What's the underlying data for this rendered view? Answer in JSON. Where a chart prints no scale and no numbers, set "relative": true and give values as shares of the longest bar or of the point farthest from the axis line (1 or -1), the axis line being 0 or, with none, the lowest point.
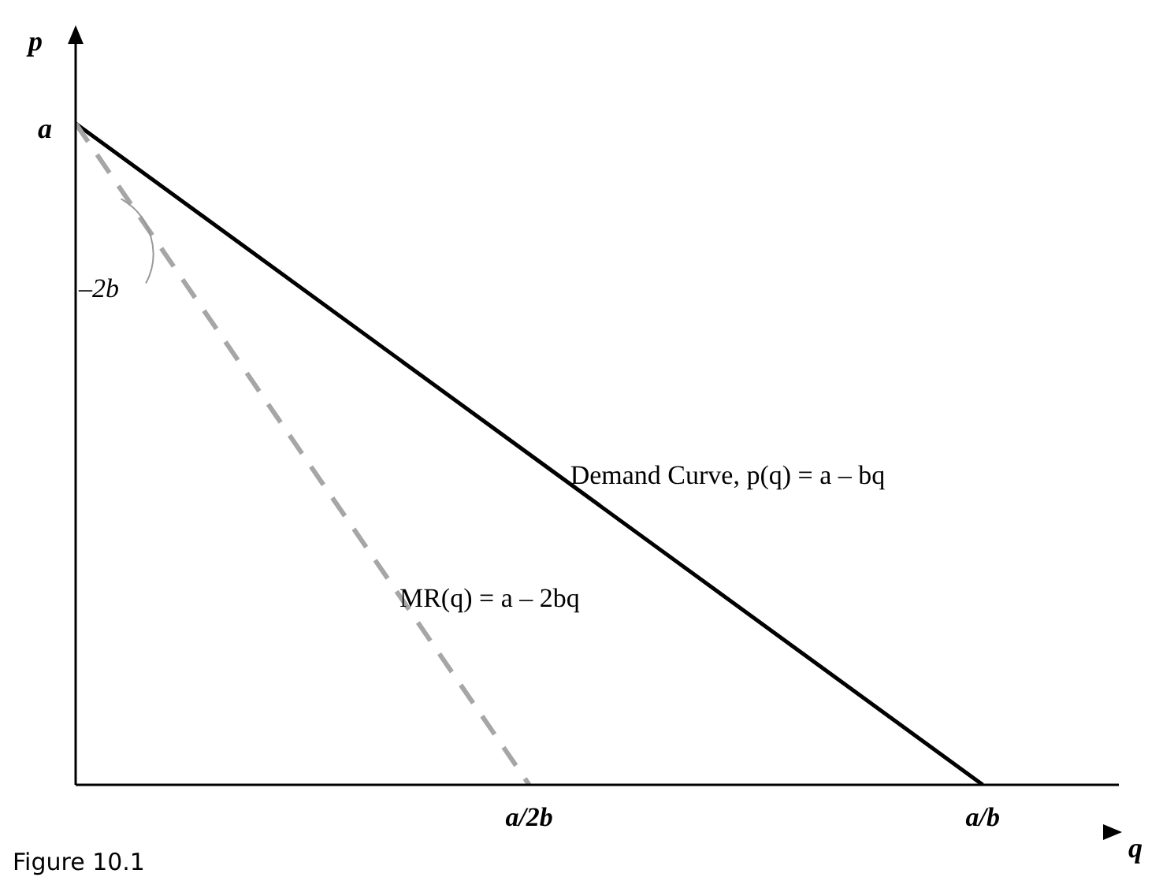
{
  "chart_data": {
    "type": "line",
    "relative": true,
    "xlabel": "q",
    "ylabel": "p",
    "categories": [
      null,
      "a/2b",
      "a/b"
    ],
    "series": [
      {
        "name": "Demand Curve, p(q) = a – bq",
        "color": "#000000",
        "line_style": "solid",
        "values": [
          1,
          0.5,
          0
        ]
      },
      {
        "name": "MR(q) = a – 2bq",
        "color": "#a6a6a6",
        "line_style": "dashed",
        "values": [
          1,
          0,
          null
        ]
      }
    ],
    "annotations": [
      "a",
      "–2b",
      "Figure 10.1"
    ]
  }
}
